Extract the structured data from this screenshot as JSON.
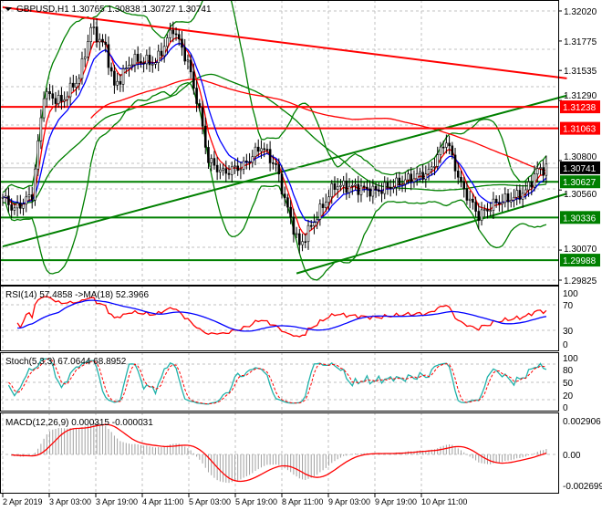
{
  "header": {
    "symbol": "GBPUSD,H1",
    "ohlc": "1.30765 1.30838 1.30727 1.30741"
  },
  "price_axis": [
    "1.32020",
    "1.31775",
    "1.31535",
    "1.31290",
    "1.30800",
    "1.30560",
    "1.30070",
    "1.29825"
  ],
  "levels": [
    {
      "label": "1.31238",
      "price": 1.31238,
      "color": "#ff0000"
    },
    {
      "label": "1.31063",
      "price": 1.31063,
      "color": "#ff0000"
    },
    {
      "label": "1.30741",
      "price": 1.30741,
      "color": "#000000",
      "current": true
    },
    {
      "label": "1.30627",
      "price": 1.30627,
      "color": "#008000"
    },
    {
      "label": "1.30336",
      "price": 1.30336,
      "color": "#008000"
    },
    {
      "label": "1.29988",
      "price": 1.29988,
      "color": "#008000"
    }
  ],
  "rsi": {
    "title": "RSI(14) 57.4858  ->MA(18) 52.3966",
    "axis": [
      "100",
      "70",
      "30",
      "0"
    ]
  },
  "stoch": {
    "title": "Stoch(5,3,3) 67.0644 68.8952",
    "axis": [
      "100",
      "80",
      "50",
      "20",
      "0"
    ]
  },
  "macd": {
    "title": "MACD(12,26,9) 0.000315 -0.000031",
    "axis": [
      "0.002906",
      "0.00",
      "-0.002699"
    ]
  },
  "time_axis": [
    "2 Apr 2019",
    "3 Apr 03:00",
    "3 Apr 19:00",
    "4 Apr 11:00",
    "5 Apr 03:00",
    "5 Apr 19:00",
    "8 Apr 11:00",
    "9 Apr 03:00",
    "9 Apr 19:00",
    "10 Apr 11:00"
  ],
  "chart_data": {
    "type": "candlestick",
    "title": "GBPUSD,H1",
    "ylim": [
      1.29825,
      1.3202
    ],
    "keypoints_bar_close": [
      [
        0,
        1.305
      ],
      [
        4,
        1.304
      ],
      [
        10,
        1.3052
      ],
      [
        14,
        1.3135
      ],
      [
        20,
        1.3128
      ],
      [
        26,
        1.3148
      ],
      [
        30,
        1.3188
      ],
      [
        35,
        1.3172
      ],
      [
        38,
        1.314
      ],
      [
        44,
        1.3162
      ],
      [
        52,
        1.316
      ],
      [
        58,
        1.3188
      ],
      [
        63,
        1.316
      ],
      [
        67,
        1.312
      ],
      [
        70,
        1.308
      ],
      [
        75,
        1.307
      ],
      [
        82,
        1.3076
      ],
      [
        88,
        1.3092
      ],
      [
        93,
        1.3075
      ],
      [
        97,
        1.304
      ],
      [
        101,
        1.301
      ],
      [
        107,
        1.3035
      ],
      [
        113,
        1.306
      ],
      [
        120,
        1.3058
      ],
      [
        127,
        1.3055
      ],
      [
        133,
        1.306
      ],
      [
        139,
        1.3066
      ],
      [
        145,
        1.307
      ],
      [
        151,
        1.3097
      ],
      [
        156,
        1.306
      ],
      [
        162,
        1.3035
      ],
      [
        168,
        1.3046
      ],
      [
        174,
        1.305
      ],
      [
        178,
        1.3055
      ],
      [
        182,
        1.3072
      ],
      [
        185,
        1.3074
      ]
    ],
    "trendlines": [
      {
        "color": "#ff0000",
        "from": [
          0,
          1.3205
        ],
        "to": [
          192,
          1.3147
        ]
      },
      {
        "color": "#008000",
        "from": [
          0,
          1.301
        ],
        "to": [
          192,
          1.3133
        ]
      },
      {
        "color": "#008000",
        "from": [
          100,
          1.2988
        ],
        "to": [
          192,
          1.3053
        ]
      }
    ]
  }
}
